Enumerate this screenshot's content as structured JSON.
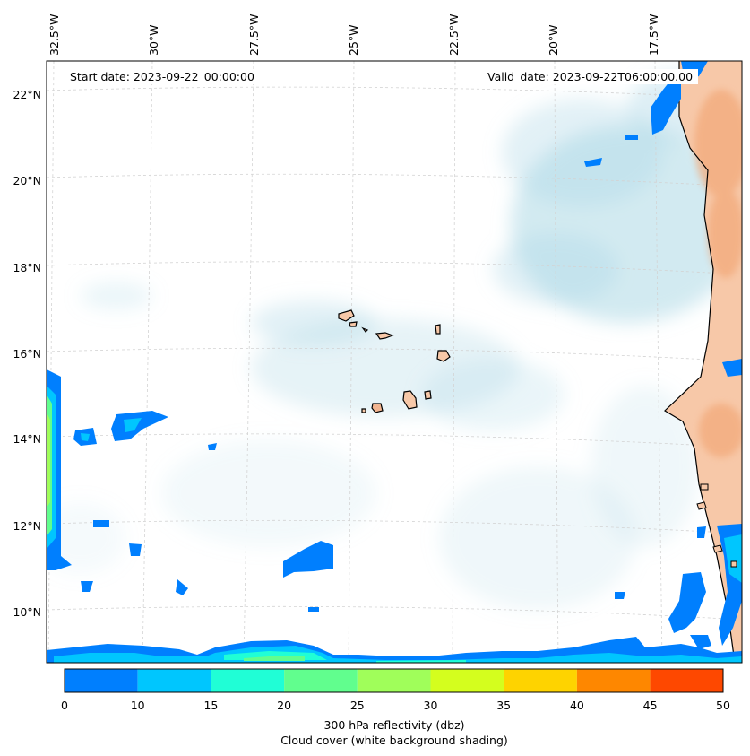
{
  "map": {
    "start_date": "Start date: 2023-09-22_00:00:00",
    "valid_date": "Valid_date: 2023-09-22T06:00:00.00",
    "lon_ticks": [
      "32.5°W",
      "30°W",
      "27.5°W",
      "25°W",
      "22.5°W",
      "20°W",
      "17.5°W"
    ],
    "lat_ticks": [
      "22°N",
      "20°N",
      "18°N",
      "16°N",
      "14°N",
      "12°N",
      "10°N"
    ],
    "colors": {
      "land": "#f7c8a8",
      "land_dark": "#f2a878",
      "cloud": "#add8e6",
      "coast": "#000000",
      "grid": "#d3d3d3"
    }
  },
  "colorbar": {
    "ticks": [
      "0",
      "10",
      "15",
      "20",
      "25",
      "30",
      "35",
      "40",
      "45",
      "50"
    ],
    "colors": [
      "#007ffe",
      "#00c6fe",
      "#20fed6",
      "#61fe8e",
      "#a0fe5a",
      "#d4fe1e",
      "#fed300",
      "#fe8700",
      "#fe4800"
    ],
    "label_line1": "300 hPa reflectivity (dbz)",
    "label_line2": "Cloud cover (white background shading)"
  }
}
